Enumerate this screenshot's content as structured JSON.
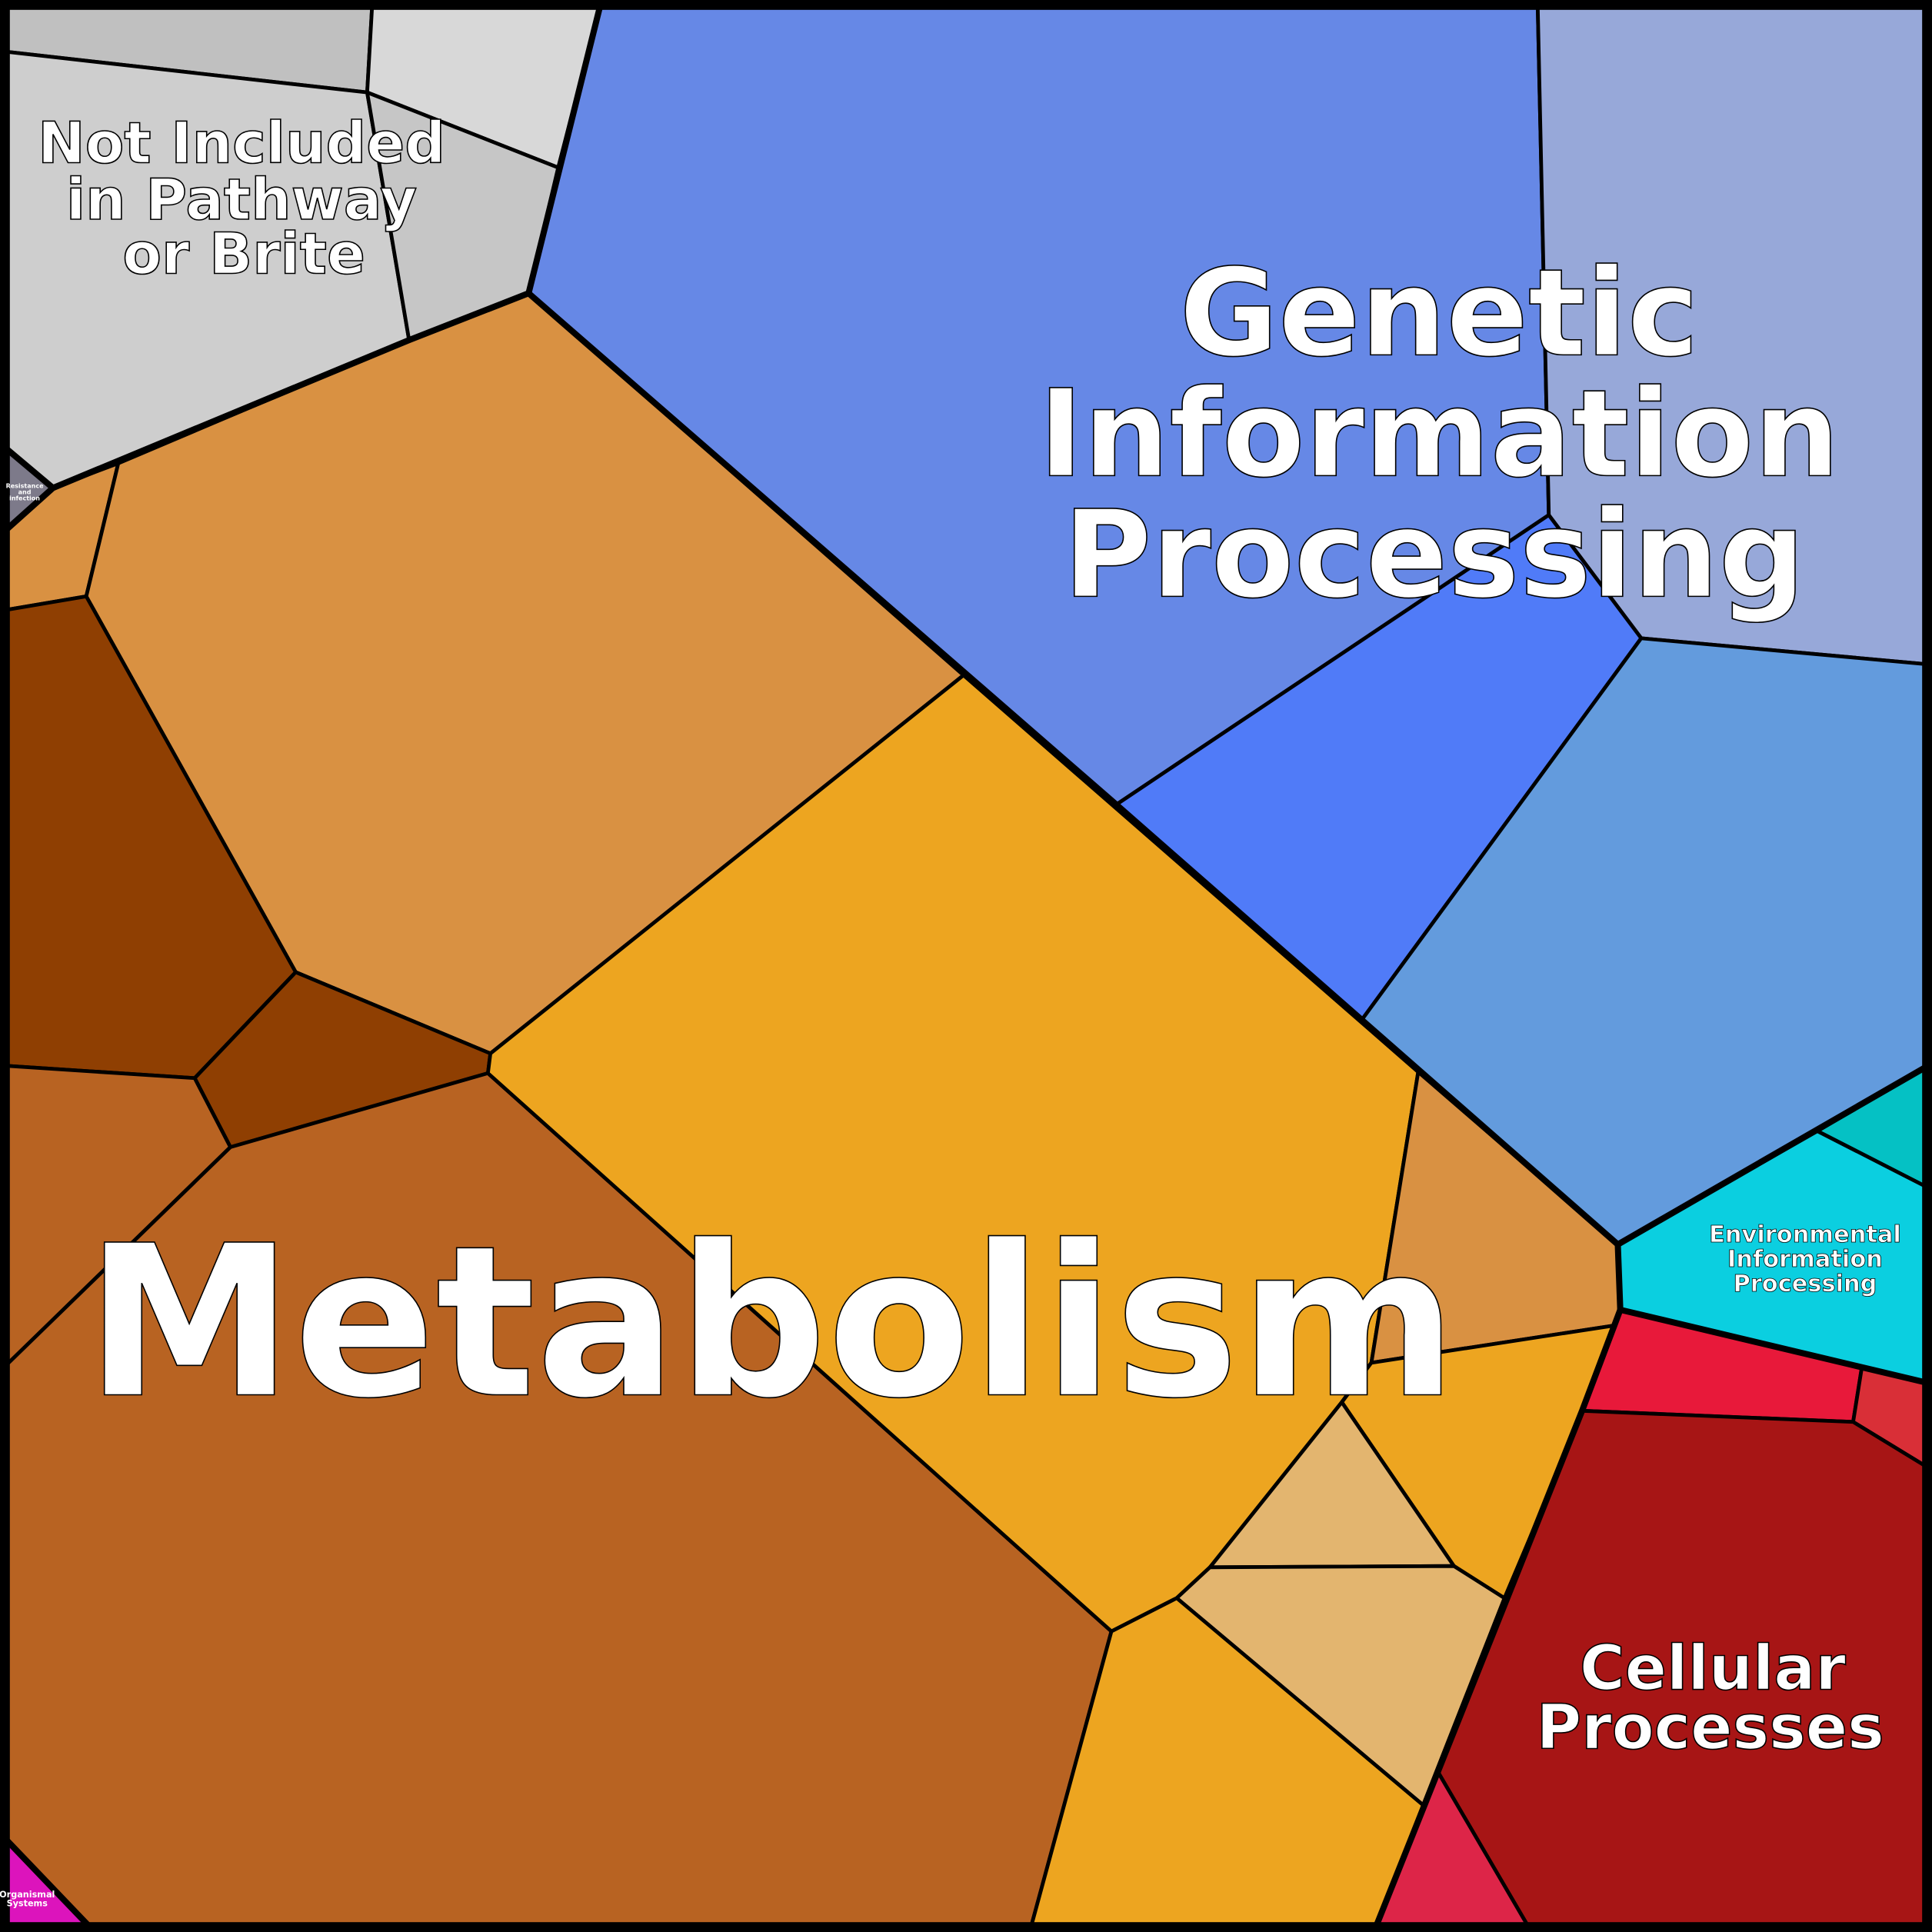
{
  "labels": {
    "not_included": [
      "Not Included",
      "in Pathway",
      "or Brite"
    ],
    "resistance": [
      "Resistance",
      "and",
      "infection"
    ],
    "genetic": [
      "Genetic",
      "Information",
      "Processing"
    ],
    "metabolism": "Metabolism",
    "environmental": [
      "Environmental",
      "Information",
      "Processing"
    ],
    "cellular": [
      "Cellular",
      "Processes"
    ],
    "organismal": [
      "Organismal",
      "Systems"
    ]
  },
  "colors": {
    "not_included": [
      "#c0c0c0",
      "#d8d8d8",
      "#cecece",
      "#c6c6c6"
    ],
    "resistance": "#7d7a8a",
    "metabolism": [
      "#d99142",
      "#8f3f02",
      "#b86322",
      "#eda520",
      "#e3b56f"
    ],
    "genetic": [
      "#6688e6",
      "#97a8d9",
      "#507bf8",
      "#639bdd"
    ],
    "environmental": [
      "#05c1c4",
      "#0bcfe0"
    ],
    "cellular": [
      "#e8193a",
      "#d92f37",
      "#a71515",
      "#dd2548"
    ],
    "organismal": "#dc14bc"
  }
}
